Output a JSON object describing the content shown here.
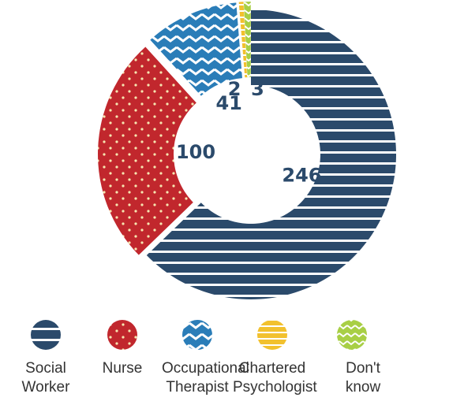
{
  "chart_data": {
    "type": "donut",
    "categories": [
      "Social Worker",
      "Nurse",
      "Occupational Therapist",
      "Chartered Psychologist",
      "Don't know"
    ],
    "values": [
      246,
      100,
      41,
      2,
      3
    ],
    "colors": [
      "#2b4a6b",
      "#c1272d",
      "#2a7db8",
      "#f2c12e",
      "#a8cf45"
    ]
  }
}
